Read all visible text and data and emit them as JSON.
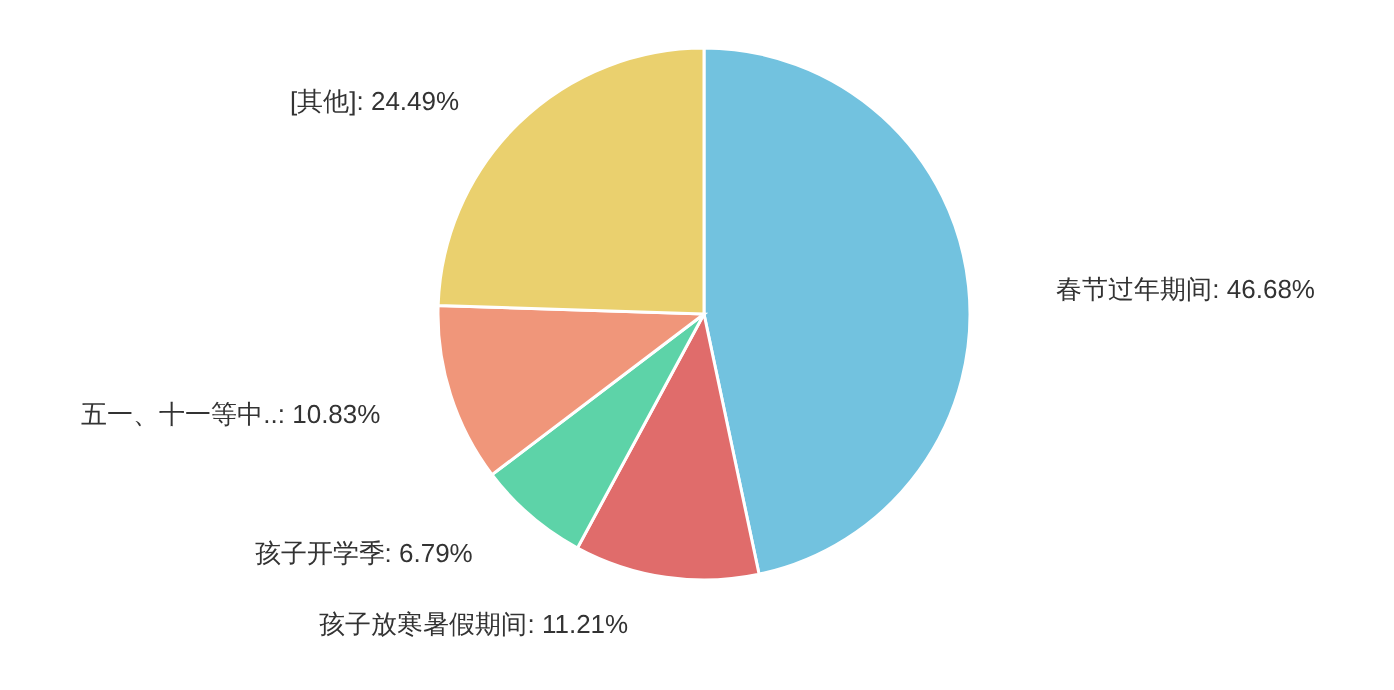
{
  "chart_data": {
    "type": "pie",
    "categories": [
      "春节过年期间",
      "孩子放寒暑假期间",
      "孩子开学季",
      "五一、十一等中..",
      "[其他]"
    ],
    "values": [
      46.68,
      11.21,
      6.79,
      10.83,
      24.49
    ],
    "value_labels": [
      "46.68%",
      "11.21%",
      "6.79%",
      "10.83%",
      "24.49%"
    ],
    "colors": [
      "#72c2df",
      "#e06c6b",
      "#5dd3a8",
      "#f0967a",
      "#ead06e"
    ]
  }
}
